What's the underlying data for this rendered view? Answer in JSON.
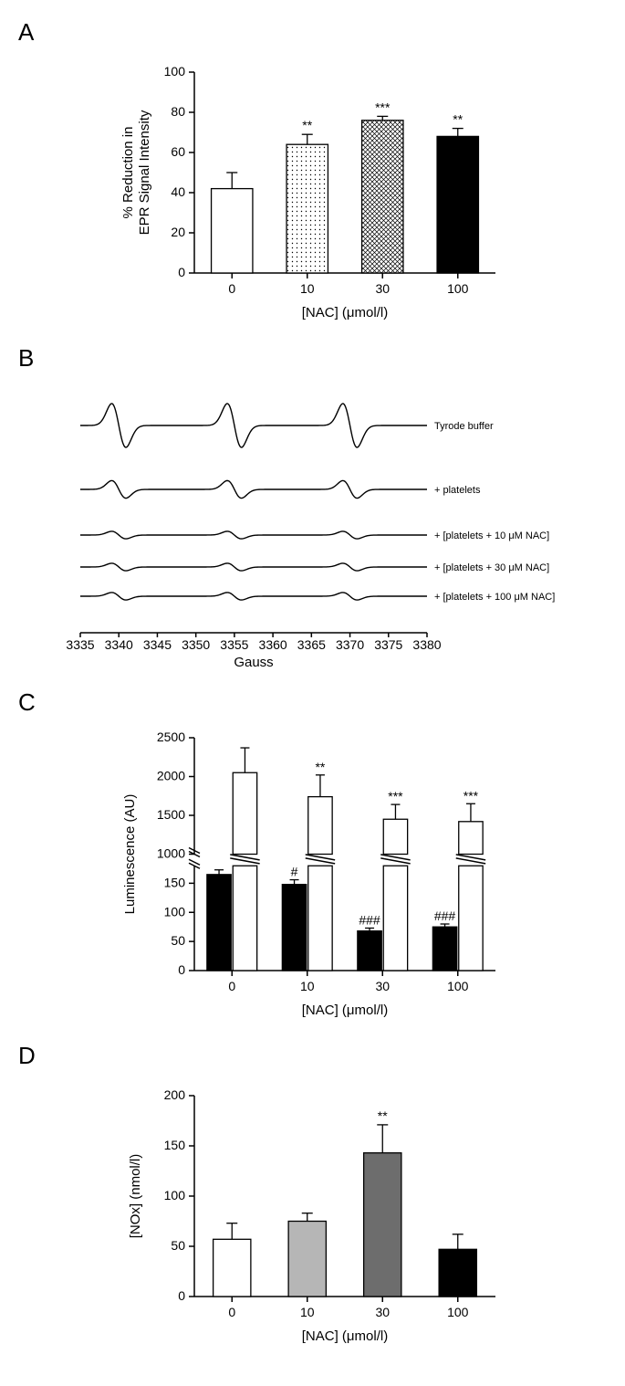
{
  "panelA": {
    "label": "A",
    "type": "bar",
    "categories": [
      "0",
      "10",
      "30",
      "100"
    ],
    "values": [
      42,
      64,
      76,
      68
    ],
    "errors": [
      8,
      5,
      2,
      4
    ],
    "fillTypes": [
      "white",
      "dots",
      "crosshatch",
      "black"
    ],
    "significance": [
      "",
      "**",
      "***",
      "**"
    ],
    "ylim": [
      0,
      100
    ],
    "ytick_step": 20,
    "ylabel": "% Reduction in\nEPR Signal Intensity",
    "xlabel": "[NAC] (μmol/l)",
    "bar_width": 0.55
  },
  "panelB": {
    "label": "B",
    "type": "epr-spectra",
    "xlabel": "Gauss",
    "xmin": 3335,
    "xmax": 3380,
    "xtick_step": 5,
    "peaks": [
      3340,
      3355,
      3370
    ],
    "traces": [
      {
        "label": "Tyrode buffer",
        "amp": 1.0
      },
      {
        "label": "+ platelets",
        "amp": 0.4
      },
      {
        "label": "+ [platelets + 10 μM NAC]",
        "amp": 0.17
      },
      {
        "label": "+ [platelets + 30 μM NAC]",
        "amp": 0.17
      },
      {
        "label": "+ [platelets + 100 μM NAC]",
        "amp": 0.17
      }
    ]
  },
  "panelC": {
    "label": "C",
    "type": "grouped-bar-broken-axis",
    "categories": [
      "0",
      "10",
      "30",
      "100"
    ],
    "black": {
      "values": [
        165,
        148,
        68,
        75
      ],
      "errors": [
        8,
        8,
        5,
        5
      ],
      "sig": [
        "",
        "#",
        "###",
        "###"
      ]
    },
    "white": {
      "values": [
        2050,
        1740,
        1450,
        1420
      ],
      "errors": [
        320,
        280,
        190,
        230
      ],
      "sig": [
        "",
        "**",
        "***",
        "***"
      ]
    },
    "ylabel": "Luminescence (AU)",
    "xlabel": "[NAC] (μmol/l)",
    "lower": {
      "min": 0,
      "max": 180,
      "step": 50
    },
    "upper": {
      "min": 1000,
      "max": 2500,
      "step": 500
    },
    "bar_width": 0.32
  },
  "panelD": {
    "label": "D",
    "type": "bar",
    "categories": [
      "0",
      "10",
      "30",
      "100"
    ],
    "values": [
      57,
      75,
      143,
      47
    ],
    "errors": [
      16,
      8,
      28,
      15
    ],
    "fillTypes": [
      "white",
      "gray-light",
      "gray-dark",
      "black"
    ],
    "fillColors": {
      "white": "#ffffff",
      "gray-light": "#b6b6b6",
      "gray-dark": "#6d6d6d",
      "black": "#000000"
    },
    "significance": [
      "",
      "",
      "**",
      ""
    ],
    "ylim": [
      0,
      200
    ],
    "ytick_step": 50,
    "ylabel": "[NOx] (nmol/l)",
    "xlabel": "[NAC] (μmol/l)",
    "bar_width": 0.5
  }
}
